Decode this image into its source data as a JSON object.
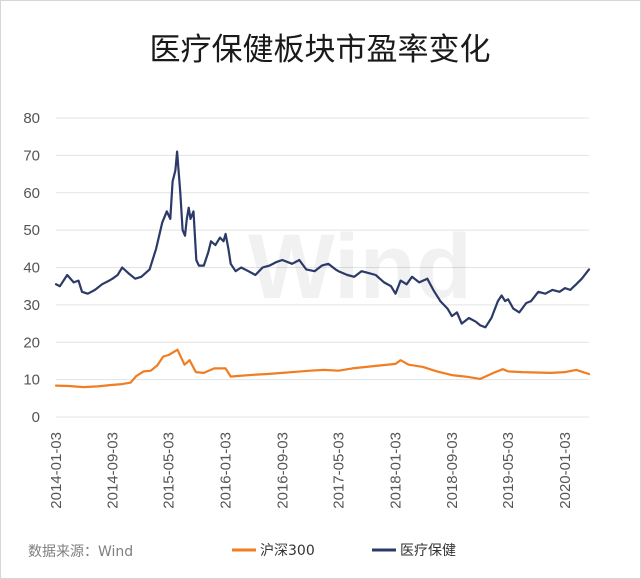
{
  "chart_data": {
    "type": "line",
    "title": "医疗保健板块市盈率变化",
    "source": "数据来源：Wind",
    "watermark": "Wind",
    "ylim": [
      0,
      80
    ],
    "yticks": [
      0,
      10,
      20,
      30,
      40,
      50,
      60,
      70,
      80
    ],
    "xlim": [
      "2014-01-03",
      "2020-04-15"
    ],
    "xticks": [
      "2014-01-03",
      "2014-09-03",
      "2015-05-03",
      "2016-01-03",
      "2016-09-03",
      "2017-05-03",
      "2018-01-03",
      "2018-09-03",
      "2019-05-03",
      "2020-01-03"
    ],
    "grid": true,
    "legend_position": "bottom",
    "series": [
      {
        "name": "沪深300",
        "color": "#f07d22",
        "points": [
          [
            "2014-01-03",
            8.4
          ],
          [
            "2014-03-01",
            8.3
          ],
          [
            "2014-05-01",
            8.0
          ],
          [
            "2014-07-01",
            8.2
          ],
          [
            "2014-09-03",
            8.6
          ],
          [
            "2014-10-15",
            8.8
          ],
          [
            "2014-11-20",
            9.2
          ],
          [
            "2014-12-15",
            11.0
          ],
          [
            "2015-01-15",
            12.2
          ],
          [
            "2015-02-15",
            12.4
          ],
          [
            "2015-03-15",
            13.8
          ],
          [
            "2015-04-10",
            16.2
          ],
          [
            "2015-05-03",
            16.6
          ],
          [
            "2015-06-10",
            18.0
          ],
          [
            "2015-07-10",
            14.0
          ],
          [
            "2015-08-01",
            15.2
          ],
          [
            "2015-08-28",
            12.0
          ],
          [
            "2015-10-01",
            11.8
          ],
          [
            "2015-11-15",
            13.0
          ],
          [
            "2016-01-03",
            13.0
          ],
          [
            "2016-01-25",
            10.8
          ],
          [
            "2016-03-01",
            11.0
          ],
          [
            "2016-05-01",
            11.3
          ],
          [
            "2016-07-01",
            11.5
          ],
          [
            "2016-09-03",
            11.8
          ],
          [
            "2016-11-01",
            12.1
          ],
          [
            "2017-01-01",
            12.4
          ],
          [
            "2017-03-01",
            12.6
          ],
          [
            "2017-05-03",
            12.4
          ],
          [
            "2017-07-01",
            13.0
          ],
          [
            "2017-09-01",
            13.4
          ],
          [
            "2017-11-01",
            13.8
          ],
          [
            "2018-01-03",
            14.2
          ],
          [
            "2018-01-25",
            15.2
          ],
          [
            "2018-03-01",
            14.0
          ],
          [
            "2018-05-01",
            13.4
          ],
          [
            "2018-07-01",
            12.2
          ],
          [
            "2018-09-03",
            11.2
          ],
          [
            "2018-11-01",
            10.8
          ],
          [
            "2019-01-03",
            10.2
          ],
          [
            "2019-03-01",
            11.8
          ],
          [
            "2019-04-10",
            12.8
          ],
          [
            "2019-05-03",
            12.2
          ],
          [
            "2019-07-01",
            12.0
          ],
          [
            "2019-09-01",
            11.9
          ],
          [
            "2019-11-01",
            11.8
          ],
          [
            "2020-01-03",
            12.0
          ],
          [
            "2020-02-20",
            12.6
          ],
          [
            "2020-04-15",
            11.5
          ]
        ]
      },
      {
        "name": "医疗保健",
        "color": "#2b3a67",
        "points": [
          [
            "2014-01-03",
            35.5
          ],
          [
            "2014-01-20",
            35.0
          ],
          [
            "2014-02-20",
            38.0
          ],
          [
            "2014-03-20",
            36.0
          ],
          [
            "2014-04-10",
            36.5
          ],
          [
            "2014-04-25",
            33.5
          ],
          [
            "2014-05-20",
            33.0
          ],
          [
            "2014-06-20",
            34.0
          ],
          [
            "2014-07-20",
            35.5
          ],
          [
            "2014-08-20",
            36.5
          ],
          [
            "2014-09-03",
            37.0
          ],
          [
            "2014-09-25",
            38.0
          ],
          [
            "2014-10-15",
            40.0
          ],
          [
            "2014-11-10",
            38.5
          ],
          [
            "2014-12-10",
            37.0
          ],
          [
            "2015-01-05",
            37.5
          ],
          [
            "2015-02-10",
            39.5
          ],
          [
            "2015-03-10",
            45.0
          ],
          [
            "2015-04-05",
            52.0
          ],
          [
            "2015-04-25",
            55.0
          ],
          [
            "2015-05-10",
            53.0
          ],
          [
            "2015-05-20",
            63.0
          ],
          [
            "2015-06-01",
            66.0
          ],
          [
            "2015-06-08",
            71.0
          ],
          [
            "2015-06-22",
            60.0
          ],
          [
            "2015-07-02",
            50.0
          ],
          [
            "2015-07-12",
            48.5
          ],
          [
            "2015-07-20",
            53.0
          ],
          [
            "2015-07-28",
            56.0
          ],
          [
            "2015-08-05",
            53.0
          ],
          [
            "2015-08-18",
            55.0
          ],
          [
            "2015-08-30",
            42.0
          ],
          [
            "2015-09-10",
            40.5
          ],
          [
            "2015-10-01",
            40.5
          ],
          [
            "2015-10-20",
            44.0
          ],
          [
            "2015-11-01",
            47.0
          ],
          [
            "2015-11-20",
            46.0
          ],
          [
            "2015-12-10",
            48.0
          ],
          [
            "2015-12-25",
            47.0
          ],
          [
            "2016-01-03",
            49.0
          ],
          [
            "2016-01-15",
            45.0
          ],
          [
            "2016-01-25",
            41.0
          ],
          [
            "2016-02-15",
            39.0
          ],
          [
            "2016-03-10",
            40.0
          ],
          [
            "2016-04-10",
            39.0
          ],
          [
            "2016-05-10",
            38.0
          ],
          [
            "2016-06-10",
            40.0
          ],
          [
            "2016-07-10",
            40.5
          ],
          [
            "2016-08-10",
            41.5
          ],
          [
            "2016-09-03",
            42.0
          ],
          [
            "2016-10-15",
            41.0
          ],
          [
            "2016-11-15",
            42.0
          ],
          [
            "2016-12-15",
            39.5
          ],
          [
            "2017-01-20",
            39.0
          ],
          [
            "2017-02-20",
            40.5
          ],
          [
            "2017-03-20",
            41.0
          ],
          [
            "2017-04-20",
            39.5
          ],
          [
            "2017-05-03",
            39.0
          ],
          [
            "2017-06-10",
            38.0
          ],
          [
            "2017-07-10",
            37.5
          ],
          [
            "2017-08-10",
            39.0
          ],
          [
            "2017-09-10",
            38.5
          ],
          [
            "2017-10-10",
            38.0
          ],
          [
            "2017-11-15",
            36.0
          ],
          [
            "2017-12-15",
            35.0
          ],
          [
            "2018-01-03",
            33.0
          ],
          [
            "2018-01-25",
            36.5
          ],
          [
            "2018-02-20",
            35.5
          ],
          [
            "2018-03-15",
            37.5
          ],
          [
            "2018-04-15",
            36.0
          ],
          [
            "2018-05-20",
            37.0
          ],
          [
            "2018-06-15",
            34.0
          ],
          [
            "2018-07-15",
            31.0
          ],
          [
            "2018-08-15",
            29.0
          ],
          [
            "2018-09-03",
            27.0
          ],
          [
            "2018-09-25",
            28.0
          ],
          [
            "2018-10-15",
            25.0
          ],
          [
            "2018-11-15",
            26.5
          ],
          [
            "2018-12-15",
            25.5
          ],
          [
            "2019-01-03",
            24.5
          ],
          [
            "2019-01-25",
            24.0
          ],
          [
            "2019-02-20",
            26.5
          ],
          [
            "2019-03-20",
            31.0
          ],
          [
            "2019-04-05",
            32.5
          ],
          [
            "2019-04-20",
            31.0
          ],
          [
            "2019-05-03",
            31.5
          ],
          [
            "2019-05-25",
            29.0
          ],
          [
            "2019-06-20",
            28.0
          ],
          [
            "2019-07-20",
            30.5
          ],
          [
            "2019-08-10",
            31.0
          ],
          [
            "2019-09-10",
            33.5
          ],
          [
            "2019-10-10",
            33.0
          ],
          [
            "2019-11-10",
            34.0
          ],
          [
            "2019-12-10",
            33.5
          ],
          [
            "2020-01-03",
            34.5
          ],
          [
            "2020-01-25",
            34.0
          ],
          [
            "2020-02-20",
            35.5
          ],
          [
            "2020-03-15",
            37.0
          ],
          [
            "2020-04-15",
            39.5
          ]
        ]
      }
    ]
  }
}
